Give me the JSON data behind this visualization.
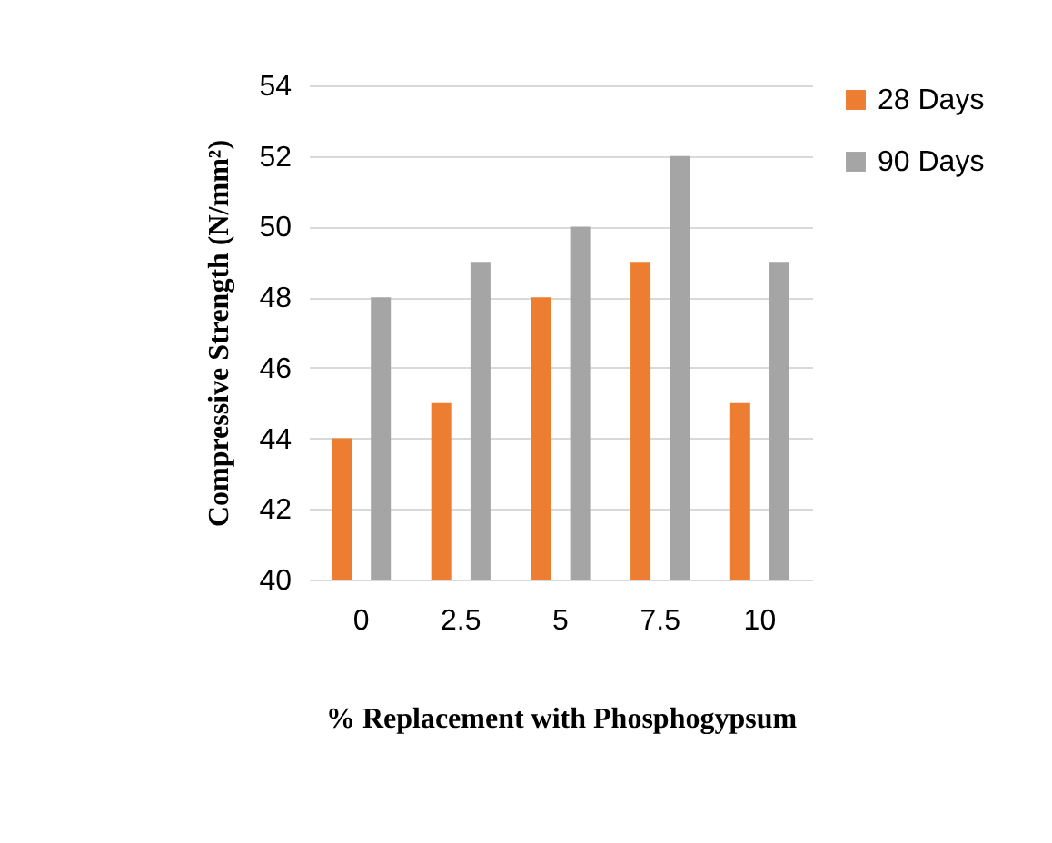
{
  "chart_data": {
    "type": "bar",
    "xlabel": "% Replacement with Phosphogypsum",
    "ylabel": "Compressive Strength (N/mm²)",
    "categories": [
      "0",
      "2.5",
      "5",
      "7.5",
      "10"
    ],
    "series": [
      {
        "name": "28 Days",
        "color": "#ed7d31",
        "values": [
          44,
          45,
          48,
          49,
          45
        ]
      },
      {
        "name": "90 Days",
        "color": "#a5a5a5",
        "values": [
          48,
          49,
          50,
          52,
          49
        ]
      }
    ],
    "ylim": [
      40,
      54
    ],
    "yticks": [
      40,
      42,
      44,
      46,
      48,
      50,
      52,
      54
    ],
    "grid": "y",
    "legend": "right"
  }
}
